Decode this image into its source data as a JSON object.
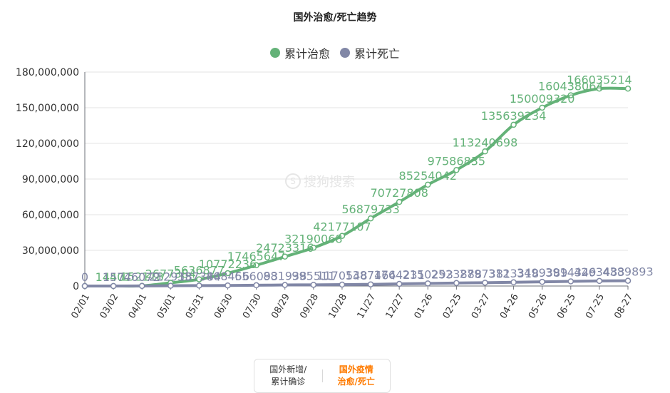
{
  "chart_data": {
    "type": "line",
    "title": "国外治愈/死亡趋势",
    "categories": [
      "02/01",
      "03/02",
      "04/01",
      "05/01",
      "05/31",
      "06/30",
      "07/30",
      "08/29",
      "09/28",
      "10/28",
      "11/27",
      "12/27",
      "01-26",
      "02-25",
      "03-27",
      "04-26",
      "05-26",
      "06-25",
      "07-25",
      "08-27"
    ],
    "ylim": [
      0,
      180000000
    ],
    "yticks": [
      "0",
      "30,000,000",
      "60,000,000",
      "90,000,000",
      "120,000,000",
      "150,000,000",
      "180,000,000"
    ],
    "ytick_values": [
      0,
      30000000,
      60000000,
      90000000,
      120000000,
      150000000,
      180000000
    ],
    "grid": true,
    "legend_position": "top-center",
    "series": [
      {
        "name": "累计治愈",
        "color": "#64b278",
        "values": [
          0,
          14407,
          152118,
          2677384,
          5636877,
          10772236,
          17465647,
          24723316,
          32190068,
          42177107,
          56879733,
          70727808,
          85254042,
          97586835,
          113240698,
          135639234,
          150009320,
          160438064,
          166035214,
          166035214
        ],
        "labels": [
          "",
          "14407",
          "152118",
          "2677384",
          "5636877",
          "10772236",
          "17465647",
          "24723316",
          "32190068",
          "42177107",
          "56879733",
          "70727808",
          "85254042",
          "97586835",
          "113240698",
          "135639234",
          "150009320",
          "160438064",
          "166035214",
          ""
        ]
      },
      {
        "name": "累计死亡",
        "color": "#8187a6",
        "values": [
          0,
          157,
          46072,
          212918,
          357384,
          468456,
          656093,
          881938,
          995511,
          1170548,
          1387464,
          1764231,
          2150293,
          2523888,
          2797381,
          3123318,
          3499389,
          3914349,
          4263483,
          4389893
        ],
        "labels": [
          "0",
          "157",
          "46072",
          "212918",
          "357384",
          "468456",
          "656093",
          "881938",
          "995511",
          "1170548",
          "1387464",
          "1764231",
          "2150293",
          "2523888",
          "2797381",
          "3123318",
          "3499389",
          "3914349",
          "4263483",
          "4389893"
        ]
      }
    ]
  },
  "watermark": {
    "text": "搜狗搜索"
  },
  "tabs": {
    "new_line1": "国外新增/",
    "new_line2": "累计确诊",
    "cured_line1": "国外疫情",
    "cured_line2": "治愈/死亡"
  }
}
